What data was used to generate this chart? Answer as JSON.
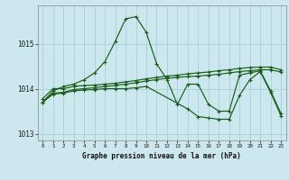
{
  "title": "Graphe pression niveau de la mer (hPa)",
  "background_color": "#cce8ee",
  "grid_color": "#aad4dc",
  "line_color": "#1a5c1a",
  "xlim": [
    -0.5,
    23.5
  ],
  "ylim": [
    1012.85,
    1015.85
  ],
  "yticks": [
    1013,
    1014,
    1015
  ],
  "xticks": [
    0,
    1,
    2,
    3,
    4,
    5,
    6,
    7,
    8,
    9,
    10,
    11,
    12,
    13,
    14,
    15,
    16,
    17,
    18,
    19,
    20,
    21,
    22,
    23
  ],
  "series1_x": [
    0,
    1,
    2,
    3,
    4,
    5,
    6,
    7,
    8,
    9,
    10,
    11,
    12,
    13,
    14,
    15,
    16,
    17,
    18,
    19,
    20,
    21,
    22,
    23
  ],
  "series1_y": [
    1013.7,
    1013.95,
    1014.05,
    1014.1,
    1014.2,
    1014.35,
    1014.6,
    1015.05,
    1015.55,
    1015.6,
    1015.25,
    1014.55,
    1014.2,
    1013.65,
    1014.1,
    1014.1,
    1013.65,
    1013.5,
    1013.5,
    1014.3,
    1014.35,
    1014.4,
    1013.95,
    1013.45
  ],
  "series2_x": [
    0,
    1,
    2,
    3,
    4,
    5,
    6,
    7,
    8,
    9,
    10,
    11,
    12,
    13,
    14,
    15,
    16,
    17,
    18,
    19,
    20,
    21,
    22,
    23
  ],
  "series2_y": [
    1013.78,
    1014.0,
    1014.0,
    1014.05,
    1014.07,
    1014.08,
    1014.1,
    1014.12,
    1014.15,
    1014.18,
    1014.22,
    1014.25,
    1014.28,
    1014.3,
    1014.33,
    1014.35,
    1014.37,
    1014.4,
    1014.42,
    1014.45,
    1014.47,
    1014.48,
    1014.48,
    1014.42
  ],
  "series3_x": [
    0,
    1,
    2,
    3,
    4,
    5,
    6,
    7,
    8,
    9,
    10,
    11,
    12,
    13,
    14,
    15,
    16,
    17,
    18,
    19,
    20,
    21,
    22,
    23
  ],
  "series3_y": [
    1013.7,
    1013.9,
    1013.92,
    1013.98,
    1014.0,
    1014.02,
    1014.05,
    1014.07,
    1014.1,
    1014.13,
    1014.17,
    1014.2,
    1014.23,
    1014.25,
    1014.27,
    1014.28,
    1014.3,
    1014.32,
    1014.35,
    1014.38,
    1014.4,
    1014.42,
    1014.42,
    1014.37
  ],
  "series4_x": [
    0,
    1,
    2,
    3,
    4,
    5,
    6,
    7,
    8,
    9,
    10,
    14,
    15,
    16,
    17,
    18,
    19,
    20,
    21,
    22,
    23
  ],
  "series4_y": [
    1013.7,
    1013.88,
    1013.9,
    1013.95,
    1013.97,
    1013.98,
    1014.0,
    1014.0,
    1014.0,
    1014.02,
    1014.05,
    1013.55,
    1013.38,
    1013.35,
    1013.32,
    1013.32,
    1013.85,
    1014.2,
    1014.38,
    1013.92,
    1013.4
  ]
}
